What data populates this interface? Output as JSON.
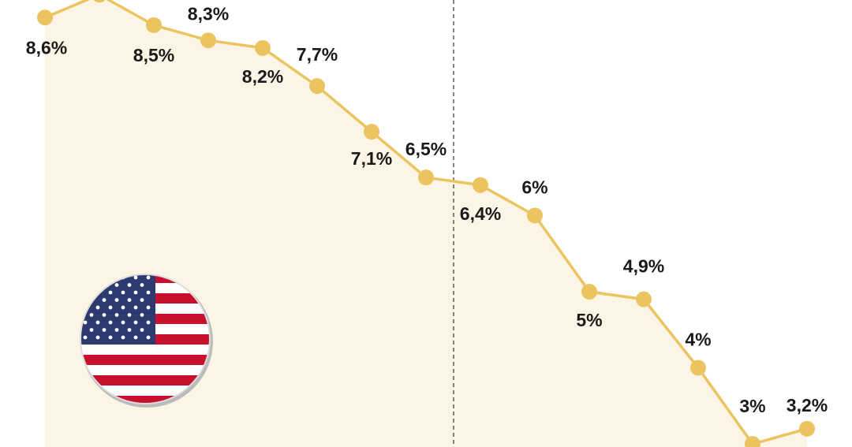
{
  "chart_data": {
    "type": "line",
    "categories": [
      null,
      null,
      null,
      null,
      null,
      null,
      null,
      null,
      null,
      null,
      null,
      null,
      null,
      null,
      null
    ],
    "series": [
      {
        "color": "#ecc45f",
        "values": [
          8.6,
          8.9,
          8.5,
          8.3,
          8.2,
          7.7,
          7.1,
          6.5,
          6.4,
          6,
          5,
          4.9,
          4,
          3,
          3.2
        ],
        "value_labels": [
          "8,6%",
          null,
          "8,5%",
          "8,3%",
          "8,2%",
          "7,7%",
          "7,1%",
          "6,5%",
          "6,4%",
          "6%",
          "5%",
          "4,9%",
          "4%",
          "3%",
          "3,2%"
        ]
      }
    ],
    "ylim": [
      2.96,
      8.83
    ]
  }
}
